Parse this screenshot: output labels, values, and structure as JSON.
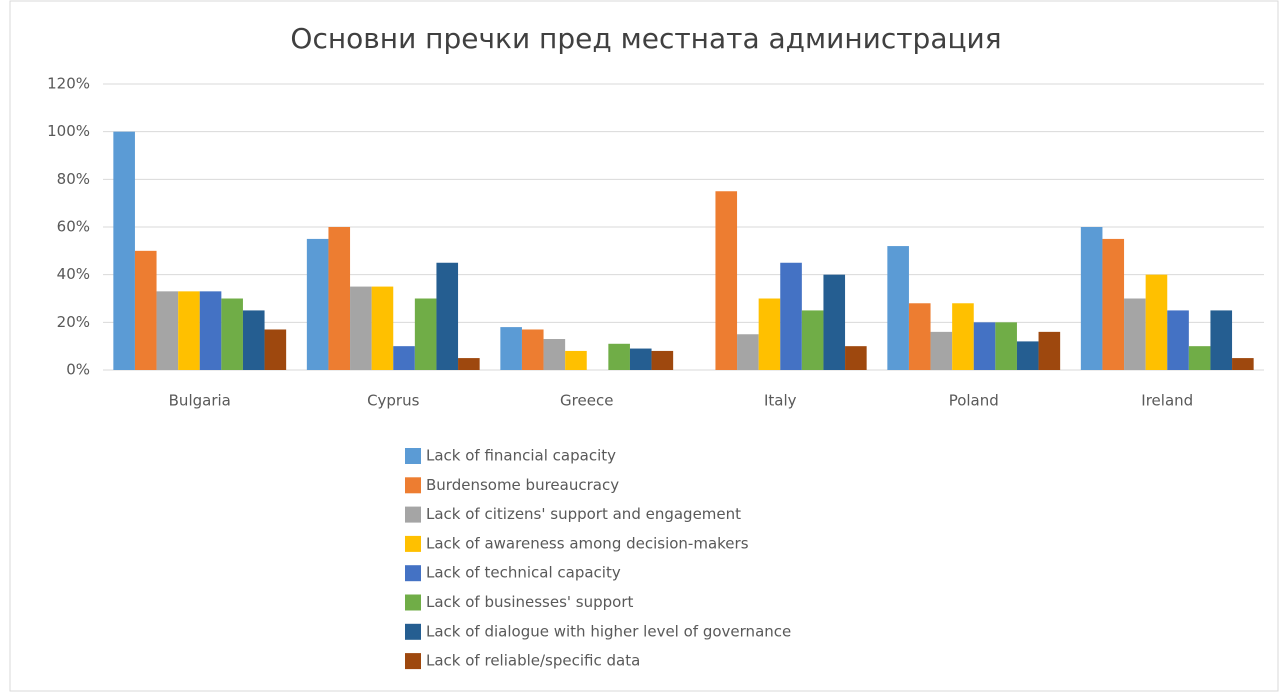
{
  "chart_data": {
    "type": "bar",
    "title": "Основни пречки пред местната администрация",
    "categories": [
      "Bulgaria",
      "Cyprus",
      "Greece",
      "Italy",
      "Poland",
      "Ireland"
    ],
    "series": [
      {
        "name": "Lack of financial capacity",
        "color": "#5b9bd5",
        "values": [
          100,
          55,
          18,
          0,
          52,
          60
        ]
      },
      {
        "name": "Burdensome bureaucracy",
        "color": "#ed7d31",
        "values": [
          50,
          60,
          17,
          75,
          28,
          55
        ]
      },
      {
        "name": "Lack of citizens' support and engagement",
        "color": "#a5a5a5",
        "values": [
          33,
          35,
          13,
          15,
          16,
          30
        ]
      },
      {
        "name": "Lack of awareness among decision-makers",
        "color": "#ffc000",
        "values": [
          33,
          35,
          8,
          30,
          28,
          40
        ]
      },
      {
        "name": "Lack of technical capacity",
        "color": "#4472c4",
        "values": [
          33,
          10,
          0,
          45,
          20,
          25
        ]
      },
      {
        "name": "Lack of businesses' support",
        "color": "#70ad47",
        "values": [
          30,
          30,
          11,
          25,
          20,
          10
        ]
      },
      {
        "name": "Lack of dialogue with higher level of governance",
        "color": "#255e91",
        "values": [
          25,
          45,
          9,
          40,
          12,
          25
        ]
      },
      {
        "name": "Lack of reliable/specific data",
        "color": "#9e480e",
        "values": [
          17,
          5,
          8,
          10,
          16,
          5
        ]
      }
    ],
    "ylim": [
      0,
      120
    ],
    "yticks": [
      {
        "value": 0,
        "label": "0%"
      },
      {
        "value": 20,
        "label": "20%"
      },
      {
        "value": 40,
        "label": "40%"
      },
      {
        "value": 60,
        "label": "60%"
      },
      {
        "value": 80,
        "label": "80%"
      },
      {
        "value": 100,
        "label": "100%"
      },
      {
        "value": 120,
        "label": "120%"
      }
    ],
    "grid": true
  }
}
